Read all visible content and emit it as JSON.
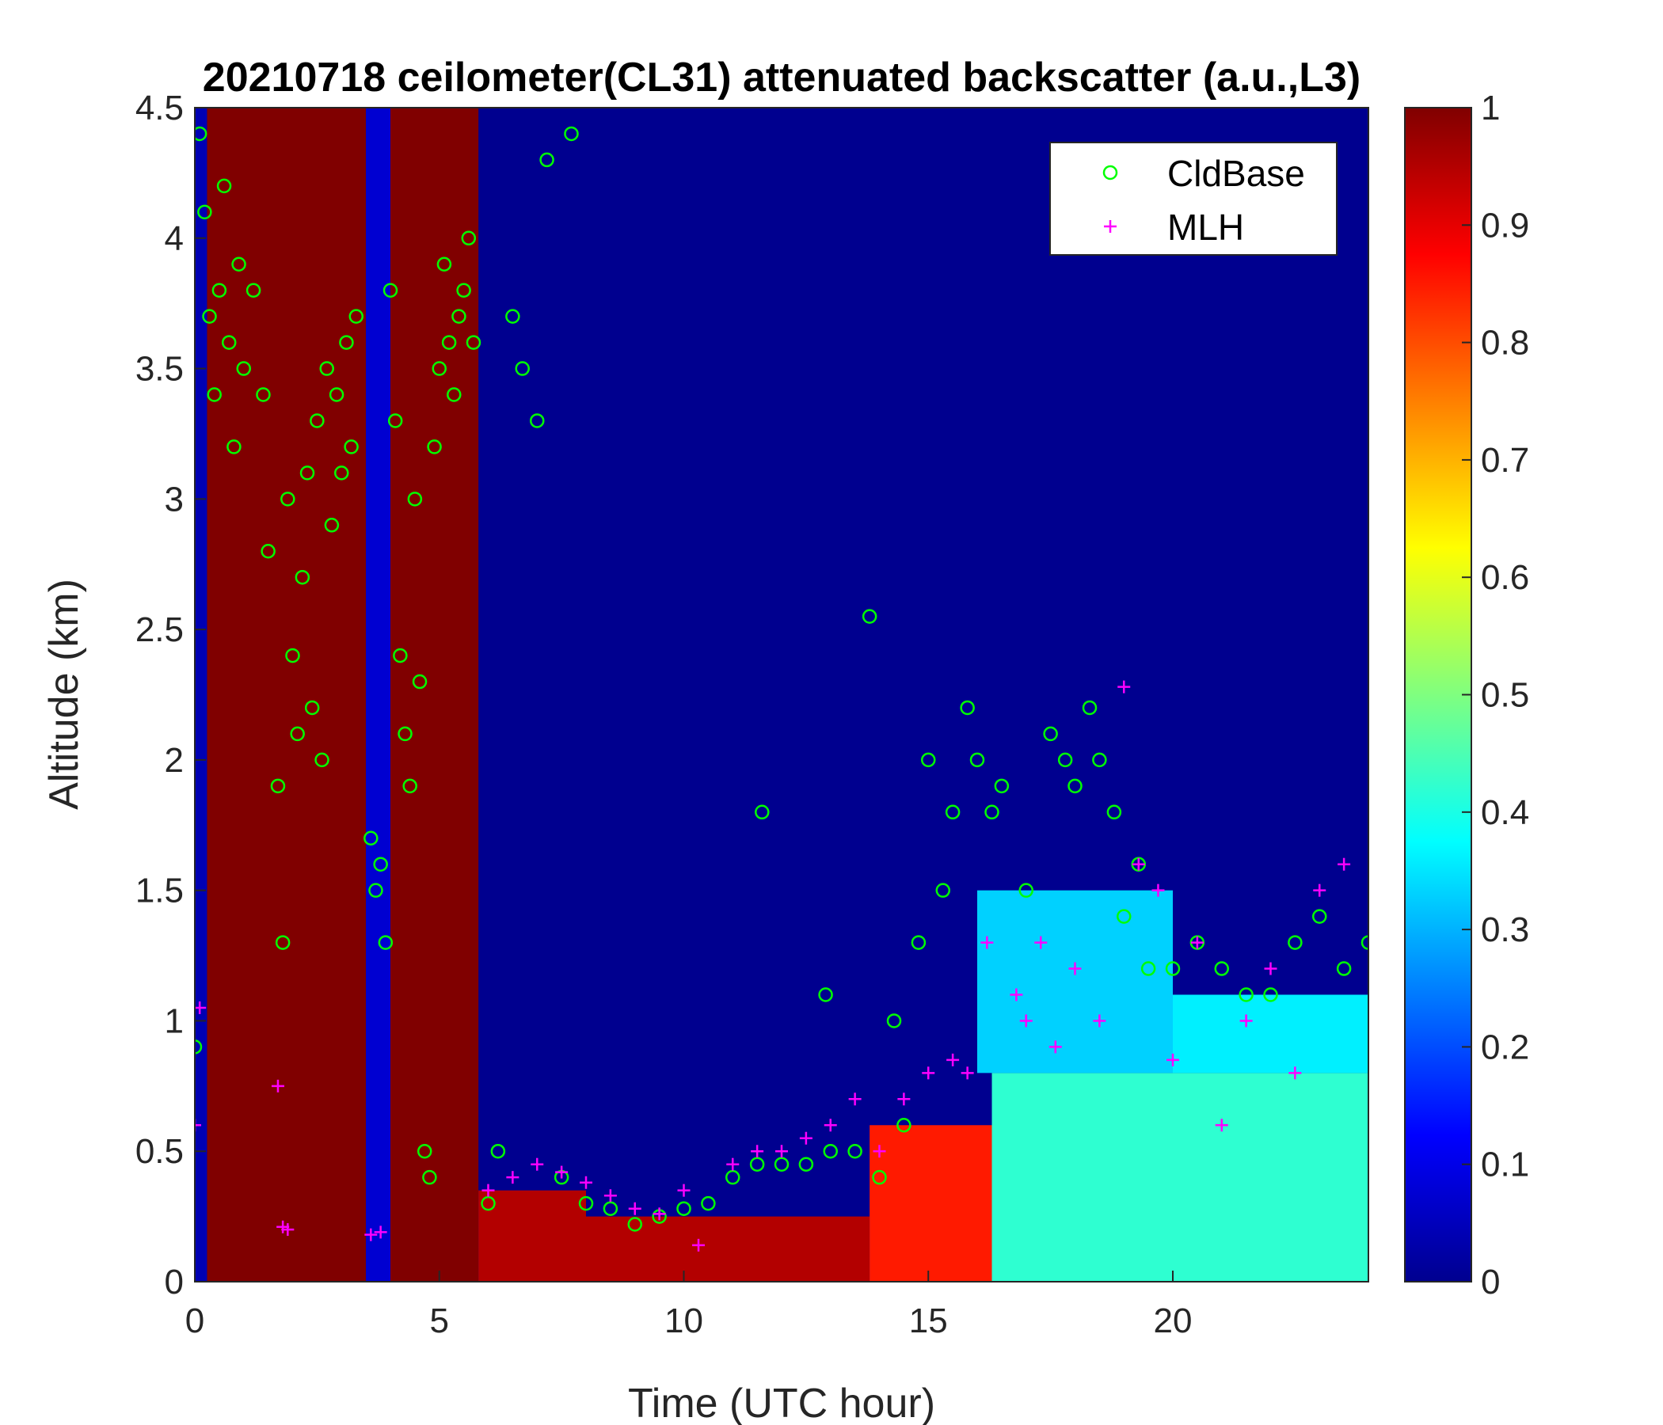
{
  "chart_data": {
    "type": "heatmap",
    "title": "20210718 ceilometer(CL31) attenuated backscatter (a.u.,L3)",
    "xlabel": "Time (UTC hour)",
    "ylabel": "Altitude (km)",
    "xlim": [
      0,
      24
    ],
    "ylim": [
      0,
      4.5
    ],
    "xticks": [
      "0",
      "5",
      "10",
      "15",
      "20"
    ],
    "xtick_values": [
      0,
      5,
      10,
      15,
      20
    ],
    "yticks": [
      "0",
      "0.5",
      "1",
      "1.5",
      "2",
      "2.5",
      "3",
      "3.5",
      "4",
      "4.5"
    ],
    "ytick_values": [
      0,
      0.5,
      1,
      1.5,
      2,
      2.5,
      3,
      3.5,
      4,
      4.5
    ],
    "colorbar": {
      "colormap": "jet",
      "range": [
        0,
        1
      ],
      "ticks": [
        "0",
        "0.1",
        "0.2",
        "0.3",
        "0.4",
        "0.5",
        "0.6",
        "0.7",
        "0.8",
        "0.9",
        "1"
      ],
      "tick_values": [
        0,
        0.1,
        0.2,
        0.3,
        0.4,
        0.5,
        0.6,
        0.7,
        0.8,
        0.9,
        1
      ]
    },
    "legend": {
      "position": "top-right",
      "entries": [
        {
          "label": "CldBase",
          "marker": "circle",
          "color": "#00ff00"
        },
        {
          "label": "MLH",
          "marker": "plus",
          "color": "#ff00ff"
        }
      ]
    },
    "heatmap_regions": [
      {
        "x": [
          0,
          0.25
        ],
        "y": [
          0,
          4.5
        ],
        "value": 0.05
      },
      {
        "x": [
          0.25,
          3.5
        ],
        "y": [
          0,
          4.5
        ],
        "value": 1.0
      },
      {
        "x": [
          3.5,
          4.0
        ],
        "y": [
          0,
          4.5
        ],
        "value": 0.08
      },
      {
        "x": [
          4.0,
          5.8
        ],
        "y": [
          0,
          4.5
        ],
        "value": 1.0
      },
      {
        "x": [
          5.8,
          8.0
        ],
        "y": [
          0,
          0.35
        ],
        "value": 0.95
      },
      {
        "x": [
          8.0,
          13.8
        ],
        "y": [
          0,
          0.25
        ],
        "value": 0.95
      },
      {
        "x": [
          13.8,
          16.3
        ],
        "y": [
          0,
          0.6
        ],
        "value": 0.85
      },
      {
        "x": [
          16.3,
          24
        ],
        "y": [
          0,
          0.8
        ],
        "value": 0.42
      },
      {
        "x": [
          16.0,
          20.0
        ],
        "y": [
          0.8,
          1.5
        ],
        "value": 0.33
      },
      {
        "x": [
          20.0,
          24
        ],
        "y": [
          0.8,
          1.1
        ],
        "value": 0.36
      }
    ],
    "series": [
      {
        "name": "CldBase",
        "marker": "circle",
        "color": "#00ff00",
        "x": [
          0.0,
          0.1,
          0.2,
          0.3,
          0.4,
          0.5,
          0.6,
          0.7,
          0.8,
          0.9,
          1.0,
          1.2,
          1.4,
          1.5,
          1.7,
          1.8,
          1.9,
          2.0,
          2.1,
          2.2,
          2.3,
          2.4,
          2.5,
          2.6,
          2.7,
          2.8,
          2.9,
          3.0,
          3.1,
          3.2,
          3.3,
          3.6,
          3.7,
          3.8,
          3.9,
          4.0,
          4.1,
          4.2,
          4.3,
          4.4,
          4.5,
          4.6,
          4.7,
          4.8,
          4.9,
          5.0,
          5.1,
          5.2,
          5.3,
          5.4,
          5.5,
          5.6,
          5.7,
          6.0,
          6.2,
          6.5,
          6.7,
          7.0,
          7.2,
          7.5,
          7.7,
          8.0,
          8.5,
          9.0,
          9.5,
          10.0,
          10.5,
          11.0,
          11.5,
          11.6,
          12.0,
          12.5,
          12.9,
          13.0,
          13.5,
          13.8,
          14.0,
          14.3,
          14.5,
          14.8,
          15.0,
          15.3,
          15.5,
          15.8,
          16.0,
          16.3,
          16.5,
          17.0,
          17.5,
          17.8,
          18.0,
          18.3,
          18.5,
          18.8,
          19.0,
          19.3,
          19.5,
          20.0,
          20.5,
          21.0,
          21.5,
          22.0,
          22.5,
          23.0,
          23.5,
          24.0
        ],
        "y": [
          0.9,
          4.4,
          4.1,
          3.7,
          3.4,
          3.8,
          4.2,
          3.6,
          3.2,
          3.9,
          3.5,
          3.8,
          3.4,
          2.8,
          1.9,
          1.3,
          3.0,
          2.4,
          2.1,
          2.7,
          3.1,
          2.2,
          3.3,
          2.0,
          3.5,
          2.9,
          3.4,
          3.1,
          3.6,
          3.2,
          3.7,
          1.7,
          1.5,
          1.6,
          1.3,
          3.8,
          3.3,
          2.4,
          2.1,
          1.9,
          3.0,
          2.3,
          0.5,
          0.4,
          3.2,
          3.5,
          3.9,
          3.6,
          3.4,
          3.7,
          3.8,
          4.0,
          3.6,
          0.3,
          0.5,
          3.7,
          3.5,
          3.3,
          4.3,
          0.4,
          4.4,
          0.3,
          0.28,
          0.22,
          0.25,
          0.28,
          0.3,
          0.4,
          0.45,
          1.8,
          0.45,
          0.45,
          1.1,
          0.5,
          0.5,
          2.55,
          0.4,
          1.0,
          0.6,
          1.3,
          2.0,
          1.5,
          1.8,
          2.2,
          2.0,
          1.8,
          1.9,
          1.5,
          2.1,
          2.0,
          1.9,
          2.2,
          2.0,
          1.8,
          1.4,
          1.6,
          1.2,
          1.2,
          1.3,
          1.2,
          1.1,
          1.1,
          1.3,
          1.4,
          1.2,
          1.3
        ]
      },
      {
        "name": "MLH",
        "marker": "plus",
        "color": "#ff00ff",
        "x": [
          0.0,
          0.1,
          1.7,
          1.8,
          1.9,
          3.6,
          3.8,
          6.0,
          6.5,
          7.0,
          7.5,
          8.0,
          8.5,
          9.0,
          9.5,
          10.0,
          10.3,
          11.0,
          11.5,
          12.0,
          12.5,
          13.0,
          13.5,
          14.0,
          14.5,
          15.0,
          15.5,
          15.8,
          16.2,
          16.8,
          17.0,
          17.3,
          17.6,
          18.0,
          18.5,
          19.0,
          19.3,
          19.7,
          20.0,
          20.5,
          21.0,
          21.5,
          22.0,
          22.5,
          23.0,
          23.5
        ],
        "y": [
          0.6,
          1.05,
          0.75,
          0.21,
          0.2,
          0.18,
          0.19,
          0.35,
          0.4,
          0.45,
          0.42,
          0.38,
          0.33,
          0.28,
          0.26,
          0.35,
          0.14,
          0.45,
          0.5,
          0.5,
          0.55,
          0.6,
          0.7,
          0.5,
          0.7,
          0.8,
          0.85,
          0.8,
          1.3,
          1.1,
          1.0,
          1.3,
          0.9,
          1.2,
          1.0,
          2.28,
          1.6,
          1.5,
          0.85,
          1.3,
          0.6,
          1.0,
          1.2,
          0.8,
          1.5,
          1.6
        ]
      }
    ]
  }
}
